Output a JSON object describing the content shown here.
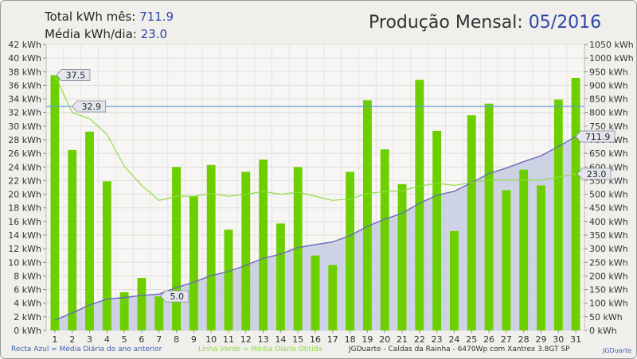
{
  "header": {
    "total_label": "Total kWh mês:",
    "total_value": "711.9",
    "avg_label": "Média kWh/dia:",
    "avg_value": "23.0",
    "title_label": "Produção Mensal:",
    "title_value": "05/2016"
  },
  "footer": {
    "blue_legend": "Recta Azul = Média Diária do ano anterior",
    "green_legend": "Linha Verde = Média Diária Obtida",
    "info": "JGDuarte  -  Caldas da Rainha  -  6470Wp com Xantrex 3.8GT SP",
    "credit": "JGDuarte"
  },
  "colors": {
    "bar": "#6ecf00",
    "cumulative_line": "#6a6ab8",
    "cumulative_fill": "#c5cce2",
    "average_line": "#8fdc3f",
    "reference_line": "#5b9bd5",
    "accent_text": "#2c46a8"
  },
  "chart_data": {
    "type": "bar",
    "categories": [
      "1",
      "2",
      "3",
      "4",
      "5",
      "6",
      "7",
      "8",
      "9",
      "10",
      "11",
      "12",
      "13",
      "14",
      "15",
      "16",
      "17",
      "18",
      "19",
      "20",
      "21",
      "22",
      "23",
      "24",
      "25",
      "26",
      "27",
      "28",
      "29",
      "30",
      "31"
    ],
    "series": [
      {
        "axis": "left",
        "kind": "bar",
        "values": [
          37.5,
          26.5,
          29.2,
          21.9,
          5.6,
          7.7,
          5.0,
          24.0,
          19.7,
          24.3,
          14.8,
          23.3,
          25.1,
          15.7,
          24.0,
          11.0,
          9.6,
          23.3,
          33.8,
          26.6,
          21.5,
          36.8,
          29.3,
          14.6,
          31.6,
          33.3,
          20.6,
          23.6,
          21.3,
          33.9,
          37.1
        ]
      },
      {
        "axis": "right",
        "kind": "area",
        "values": [
          37.5,
          64.0,
          93.2,
          115.1,
          120.7,
          128.4,
          133.4,
          157.4,
          177.1,
          201.4,
          216.2,
          239.5,
          264.6,
          280.3,
          304.3,
          315.3,
          324.9,
          348.2,
          382.0,
          408.6,
          430.1,
          466.9,
          496.2,
          510.8,
          542.4,
          575.7,
          596.3,
          619.9,
          641.2,
          675.1,
          711.9
        ]
      },
      {
        "axis": "left",
        "kind": "line",
        "values": [
          37.5,
          32.0,
          31.1,
          28.8,
          24.1,
          21.3,
          19.1,
          19.7,
          19.7,
          20.1,
          19.7,
          20.0,
          20.4,
          20.0,
          20.3,
          19.7,
          19.1,
          19.3,
          20.1,
          20.4,
          20.5,
          21.2,
          21.6,
          21.3,
          21.7,
          22.1,
          22.1,
          22.1,
          22.1,
          22.5,
          23.0
        ]
      },
      {
        "axis": "left",
        "kind": "reference",
        "value": 32.9
      }
    ],
    "labels": {
      "first_bar": "37.5",
      "reference": "32.9",
      "min_bar": "5.0",
      "cumulative_end": "711.9",
      "average_end": "23.0"
    },
    "left_axis": {
      "min": 0,
      "max": 42,
      "step": 2,
      "unit": "kWh",
      "ticks": [
        "0 kWh",
        "2 kWh",
        "4 kWh",
        "6 kWh",
        "8 kWh",
        "10 kWh",
        "12 kWh",
        "14 kWh",
        "16 kWh",
        "18 kWh",
        "20 kWh",
        "22 kWh",
        "24 kWh",
        "26 kWh",
        "28 kWh",
        "30 kWh",
        "32 kWh",
        "34 kWh",
        "36 kWh",
        "38 kWh",
        "40 kWh",
        "42 kWh"
      ]
    },
    "right_axis": {
      "min": 0,
      "max": 1050,
      "step": 50,
      "unit": "kWh",
      "ticks": [
        "0 kWh",
        "50 kWh",
        "100 kWh",
        "150 kWh",
        "200 kWh",
        "250 kWh",
        "300 kWh",
        "350 kWh",
        "400 kWh",
        "450 kWh",
        "500 kWh",
        "550 kWh",
        "600 kWh",
        "650 kWh",
        "700 kWh",
        "750 kWh",
        "800 kWh",
        "850 kWh",
        "900 kWh",
        "950 kWh",
        "1000 kWh",
        "1050 kWh"
      ]
    },
    "grid": true
  }
}
